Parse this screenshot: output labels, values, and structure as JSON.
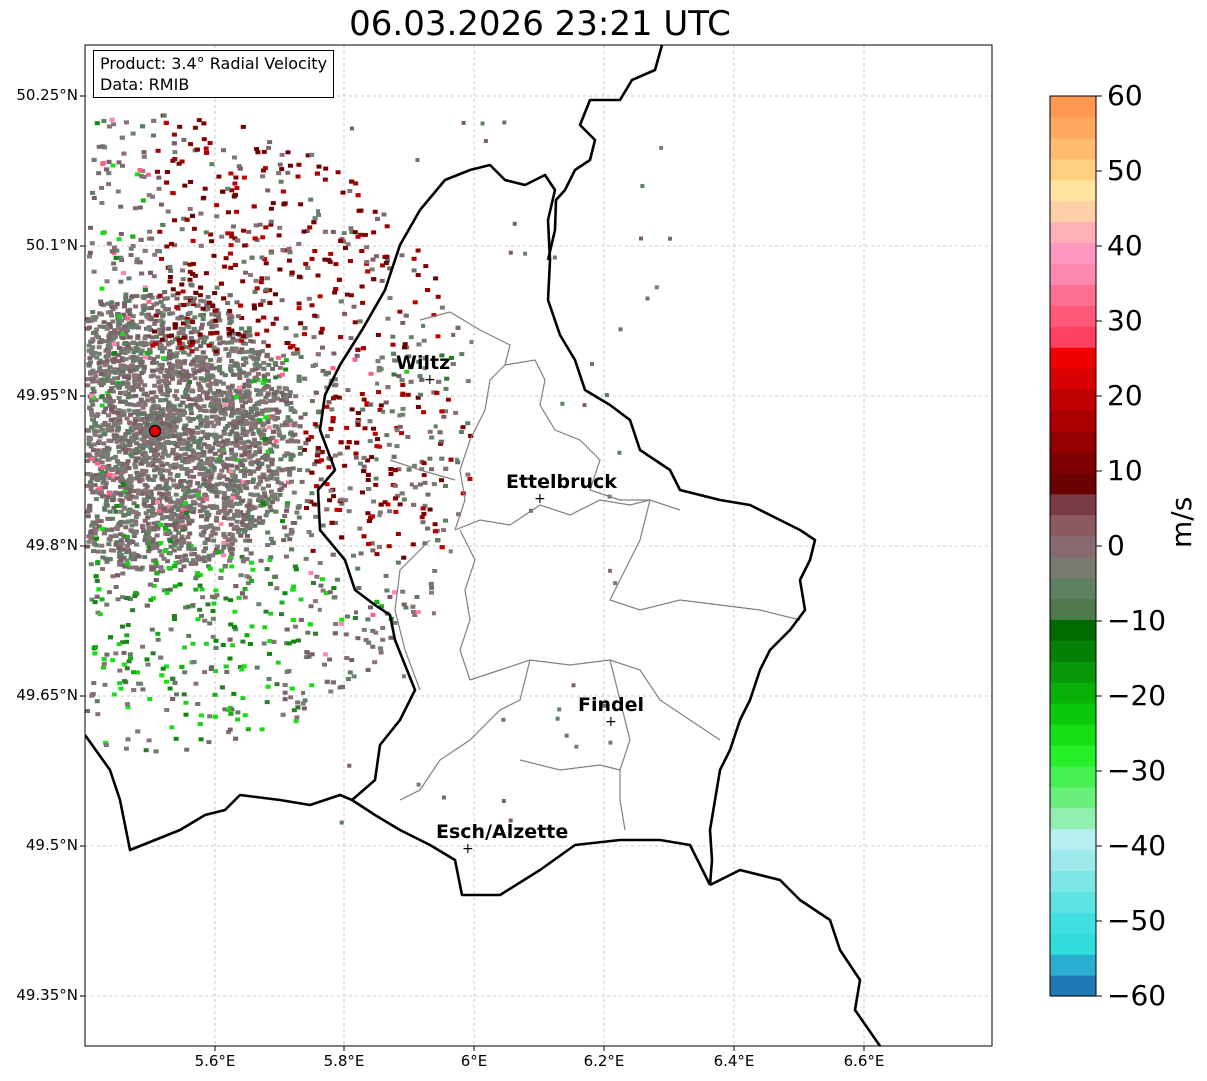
{
  "title": "06.03.2026 23:21 UTC",
  "info_box": {
    "product": "Product: 3.4° Radial Velocity",
    "data_source": "Data: RMIB"
  },
  "axes": {
    "lat_labels": [
      "50.25°N",
      "50.1°N",
      "49.95°N",
      "49.8°N",
      "49.65°N",
      "49.5°N",
      "49.35°N"
    ],
    "lon_labels": [
      "5.6°E",
      "5.8°E",
      "6°E",
      "6.2°E",
      "6.4°E",
      "6.6°E"
    ]
  },
  "cities": [
    {
      "name": "Wiltz"
    },
    {
      "name": "Ettelbruck"
    },
    {
      "name": "Findel"
    },
    {
      "name": "Esch/Alzette"
    }
  ],
  "colorbar": {
    "unit": "m/s",
    "ticks": [
      "60",
      "50",
      "40",
      "30",
      "20",
      "10",
      "0",
      "−10",
      "−20",
      "−30",
      "−40",
      "−50",
      "−60"
    ],
    "min": -60,
    "max": 60,
    "colors": [
      "#1f78b4",
      "#2aaed0",
      "#30dcdc",
      "#40e0e0",
      "#5de3e3",
      "#7ee7e7",
      "#9eeaea",
      "#b8eef0",
      "#90f0b0",
      "#6af07a",
      "#45f050",
      "#28f028",
      "#14e014",
      "#0cc80c",
      "#08b008",
      "#069806",
      "#048004",
      "#026a02",
      "#4e7a4e",
      "#5f8060",
      "#7a7a70",
      "#866a70",
      "#8a5a60",
      "#7a3a44",
      "#6a0000",
      "#7e0000",
      "#940000",
      "#aa0000",
      "#c00000",
      "#d80000",
      "#f00000",
      "#ff4060",
      "#ff5a78",
      "#ff7090",
      "#ff88b0",
      "#ff98c0",
      "#ffb0b8",
      "#ffd0a8",
      "#ffe5a0",
      "#ffd080",
      "#ffbb70",
      "#ffa860",
      "#ff9850"
    ]
  }
}
